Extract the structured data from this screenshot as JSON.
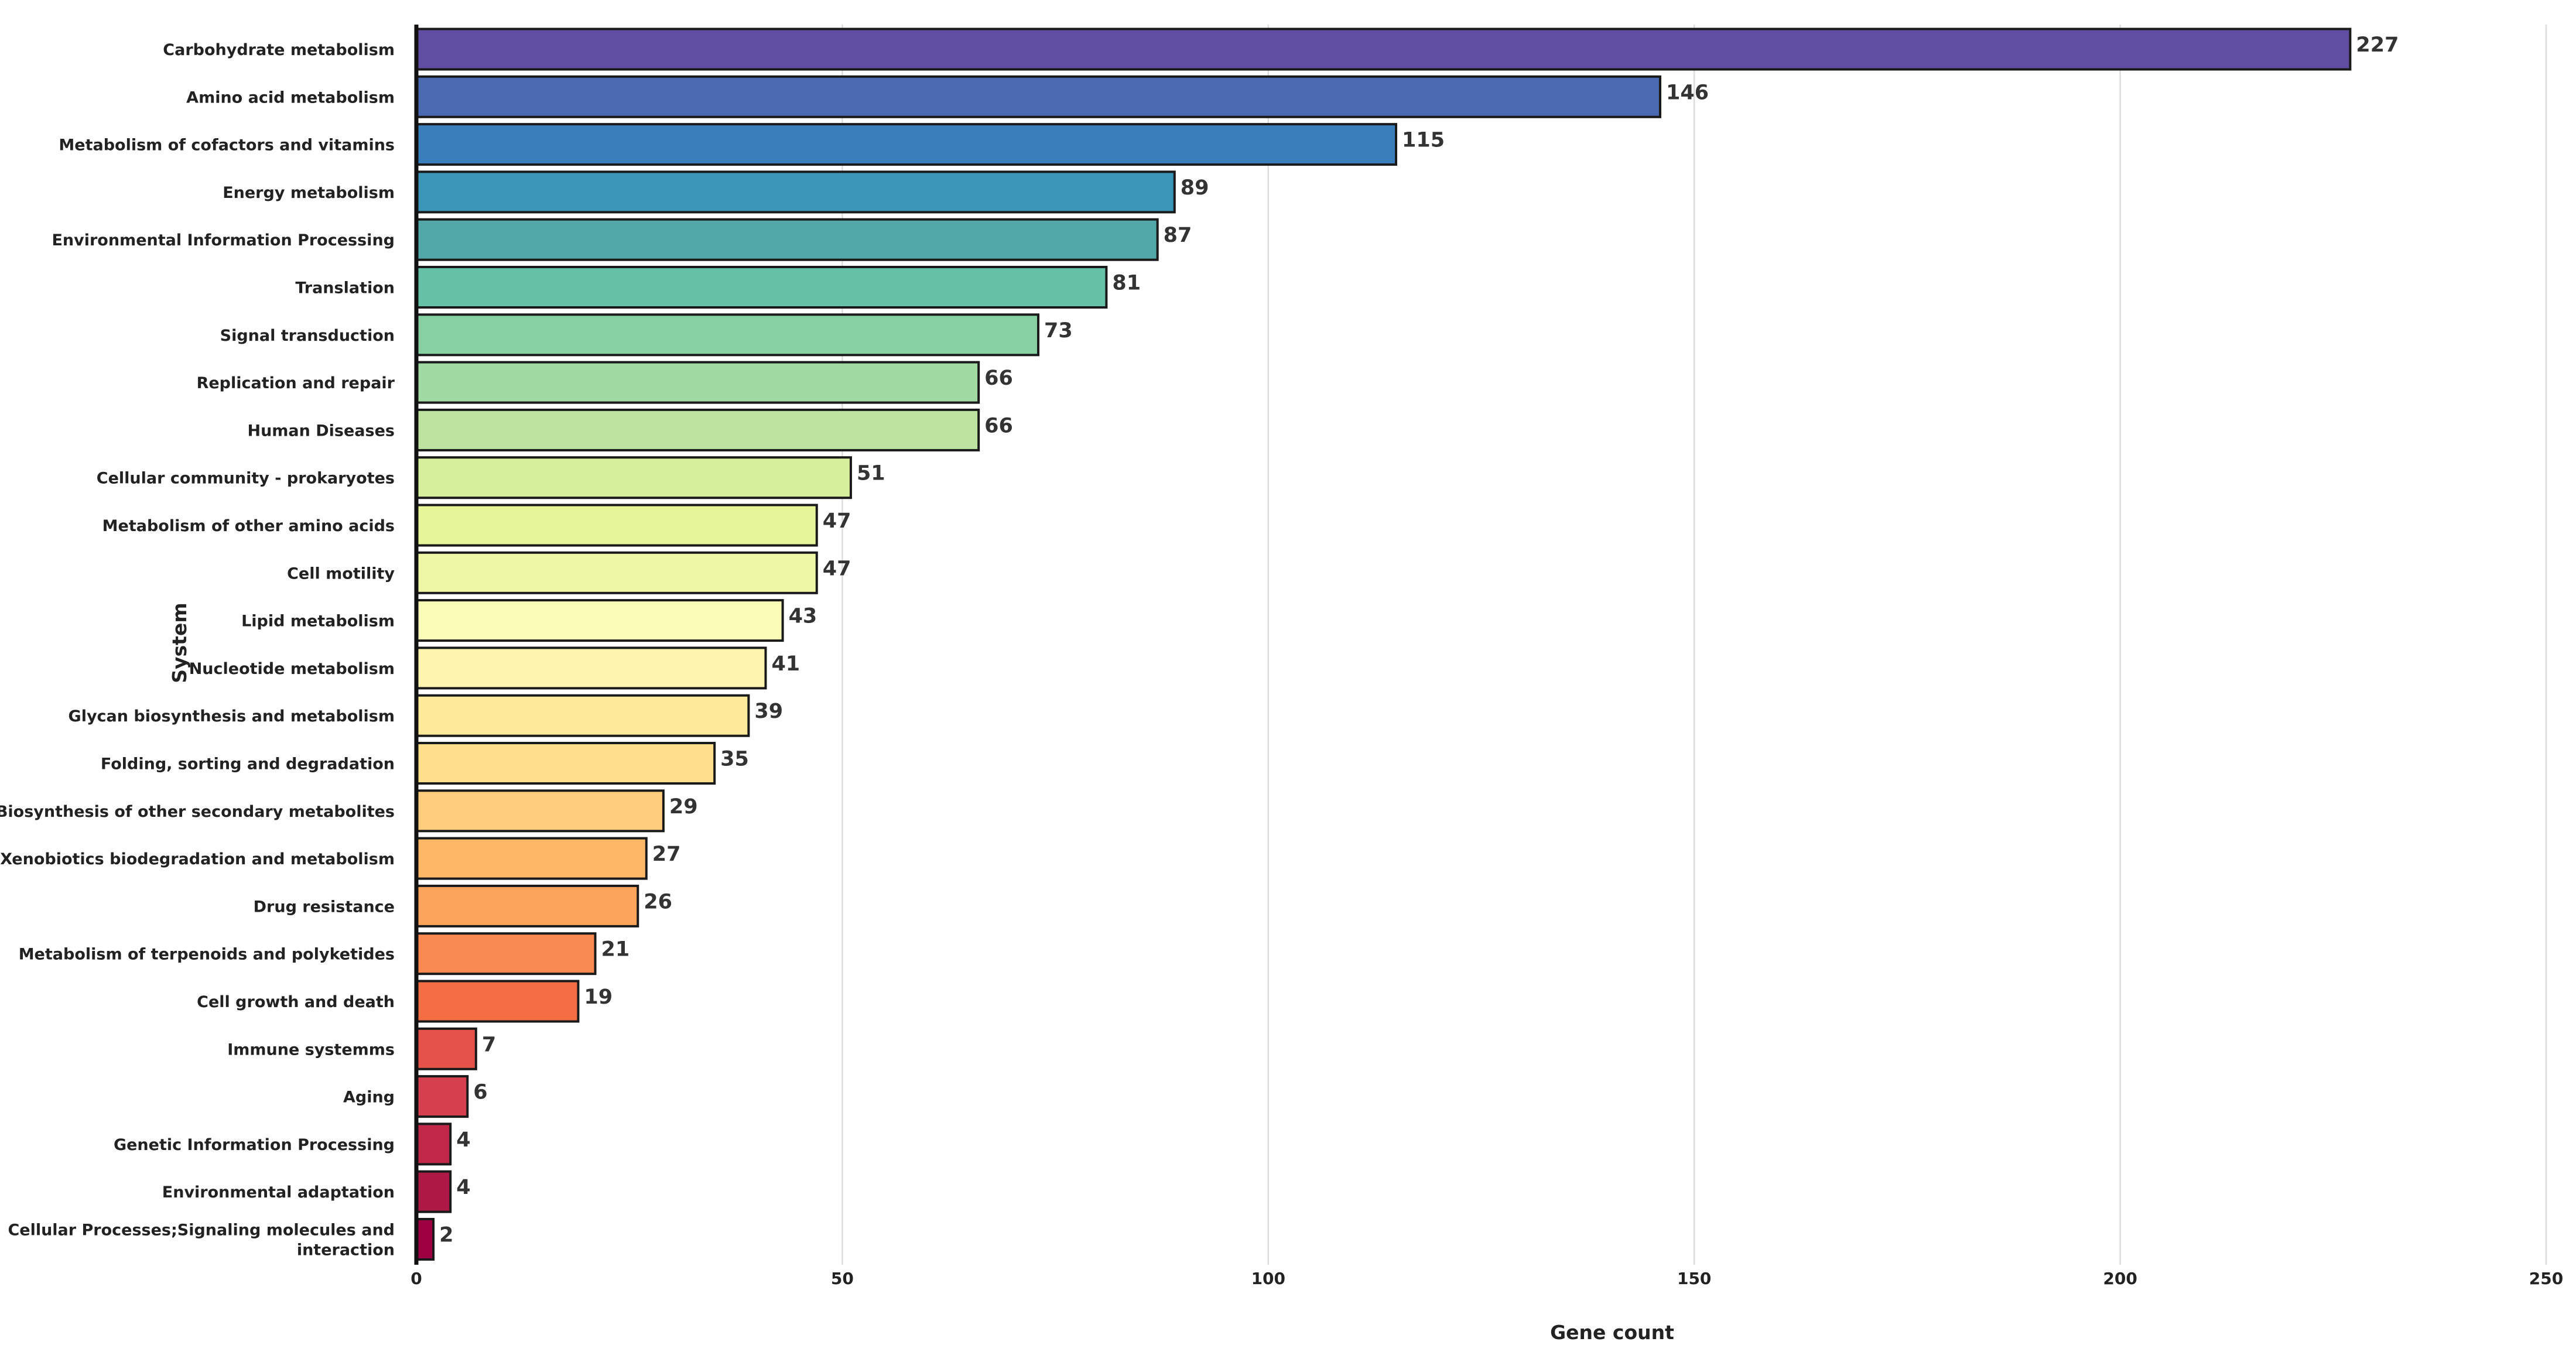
{
  "chart_data": {
    "type": "bar",
    "orientation": "horizontal",
    "xlabel": "Gene count",
    "ylabel": "System",
    "xlim": [
      0,
      250
    ],
    "xticks": [
      0,
      50,
      100,
      150,
      200,
      250
    ],
    "grid": "vertical",
    "colormap": "Spectral_r",
    "categories": [
      "Carbohydrate metabolism",
      "Amino acid metabolism",
      "Metabolism of cofactors and vitamins",
      "Energy metabolism",
      "Environmental Information Processing",
      "Translation",
      "Signal transduction",
      "Replication and repair",
      "Human Diseases",
      "Cellular community - prokaryotes",
      "Metabolism of other amino acids",
      "Cell motility",
      "Lipid metabolism",
      "Nucleotide metabolism",
      "Glycan biosynthesis and metabolism",
      "Folding, sorting and degradation",
      "Biosynthesis of other secondary metabolites",
      "Xenobiotics biodegradation and metabolism",
      "Drug resistance",
      "Metabolism of terpenoids and polyketides",
      "Cell growth and death",
      "Immune systemms",
      "Aging",
      "Genetic Information Processing",
      "Environmental adaptation",
      "Cellular Processes;Signaling molecules and interaction"
    ],
    "values": [
      227,
      146,
      115,
      89,
      87,
      81,
      73,
      66,
      66,
      51,
      47,
      47,
      43,
      41,
      39,
      35,
      29,
      27,
      26,
      21,
      19,
      7,
      6,
      4,
      4,
      2
    ],
    "colors": [
      "#5e4fa2",
      "#4a69b0",
      "#3a7fbb",
      "#3b95b8",
      "#52a8a9",
      "#66c2a5",
      "#86d0a4",
      "#a1d9a3",
      "#bce4a0",
      "#d5ee9b",
      "#e6f598",
      "#eef7a5",
      "#fbfbb8",
      "#fff3b0",
      "#fee89a",
      "#fedf8b",
      "#fdcc7d",
      "#fdb767",
      "#fca35c",
      "#f88a52",
      "#f46d43",
      "#e45249",
      "#d6404e",
      "#c0284a",
      "#ad1845",
      "#9e0142"
    ]
  }
}
